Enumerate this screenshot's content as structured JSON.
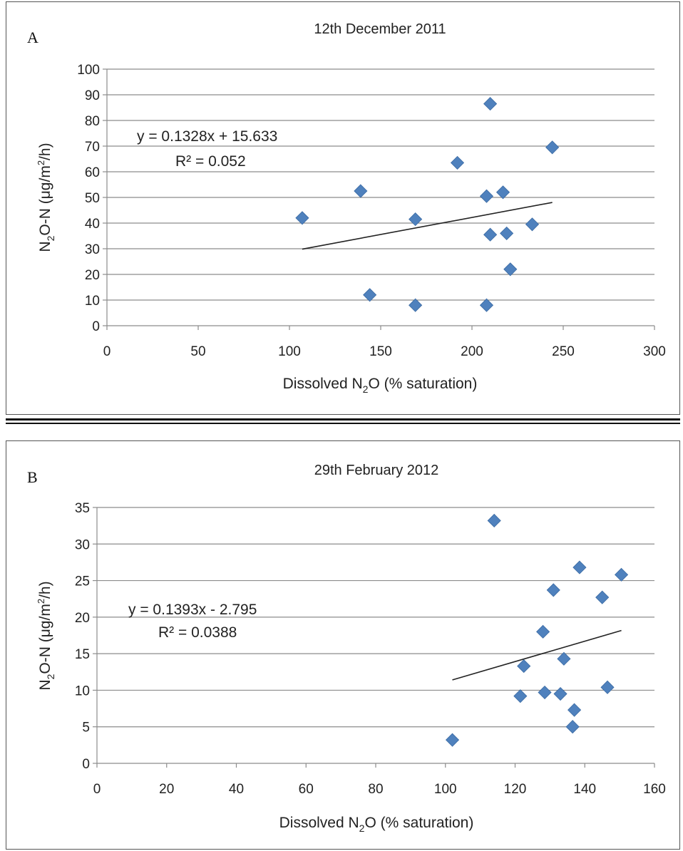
{
  "chart_data": [
    {
      "panel_label": "A",
      "type": "scatter",
      "title": "12th  December 2011",
      "xlabel": {
        "pre": "Dissolved N",
        "sub": "2",
        "post": "O (% saturation)"
      },
      "ylabel": {
        "pre": "N",
        "sub": "2",
        "mid": "O-N (μg/m",
        "sup": "2",
        "post": "/h)"
      },
      "xlim": [
        0,
        300
      ],
      "ylim": [
        0,
        100
      ],
      "xticks": [
        0,
        50,
        100,
        150,
        200,
        250,
        300
      ],
      "yticks": [
        0,
        10,
        20,
        30,
        40,
        50,
        60,
        70,
        80,
        90,
        100
      ],
      "grid": "horizontal",
      "marker_color": "#4f81bd",
      "points": [
        {
          "x": 107,
          "y": 42
        },
        {
          "x": 139,
          "y": 52.5
        },
        {
          "x": 144,
          "y": 12
        },
        {
          "x": 169,
          "y": 41.5
        },
        {
          "x": 169,
          "y": 8
        },
        {
          "x": 192,
          "y": 63.5
        },
        {
          "x": 208,
          "y": 50.5
        },
        {
          "x": 208,
          "y": 8
        },
        {
          "x": 210,
          "y": 86.5
        },
        {
          "x": 210,
          "y": 35.5
        },
        {
          "x": 217,
          "y": 52
        },
        {
          "x": 219,
          "y": 36
        },
        {
          "x": 221,
          "y": 22
        },
        {
          "x": 233,
          "y": 39.5
        },
        {
          "x": 244,
          "y": 69.5
        }
      ],
      "trendline": {
        "slope": 0.1328,
        "intercept": 15.633,
        "x_range": [
          107,
          244
        ]
      },
      "equation": "y = 0.1328x + 15.633",
      "r2": "R² = 0.052"
    },
    {
      "panel_label": "B",
      "type": "scatter",
      "title": "29th  February 2012",
      "xlabel": {
        "pre": "Dissolved N",
        "sub": "2",
        "post": "O (% saturation)"
      },
      "ylabel": {
        "pre": "N",
        "sub": "2",
        "mid": "O-N (μg/m",
        "sup": "2",
        "post": "/h)"
      },
      "xlim": [
        0,
        160
      ],
      "ylim": [
        0,
        35
      ],
      "xticks": [
        0,
        20,
        40,
        60,
        80,
        100,
        120,
        140,
        160
      ],
      "yticks": [
        0,
        5,
        10,
        15,
        20,
        25,
        30,
        35
      ],
      "grid": "horizontal",
      "marker_color": "#4f81bd",
      "points": [
        {
          "x": 102,
          "y": 3.2
        },
        {
          "x": 114,
          "y": 33.2
        },
        {
          "x": 121.5,
          "y": 9.2
        },
        {
          "x": 122.5,
          "y": 13.3
        },
        {
          "x": 128,
          "y": 18
        },
        {
          "x": 128.5,
          "y": 9.7
        },
        {
          "x": 131,
          "y": 23.7
        },
        {
          "x": 133,
          "y": 9.5
        },
        {
          "x": 134,
          "y": 14.3
        },
        {
          "x": 136.5,
          "y": 5
        },
        {
          "x": 137,
          "y": 7.3
        },
        {
          "x": 138.5,
          "y": 26.8
        },
        {
          "x": 145,
          "y": 22.7
        },
        {
          "x": 146.5,
          "y": 10.4
        },
        {
          "x": 150.5,
          "y": 25.8
        }
      ],
      "trendline": {
        "slope": 0.1393,
        "intercept": -2.795,
        "x_range": [
          102,
          150.5
        ]
      },
      "equation": "y = 0.1393x - 2.795",
      "r2": "R² = 0.0388"
    }
  ]
}
